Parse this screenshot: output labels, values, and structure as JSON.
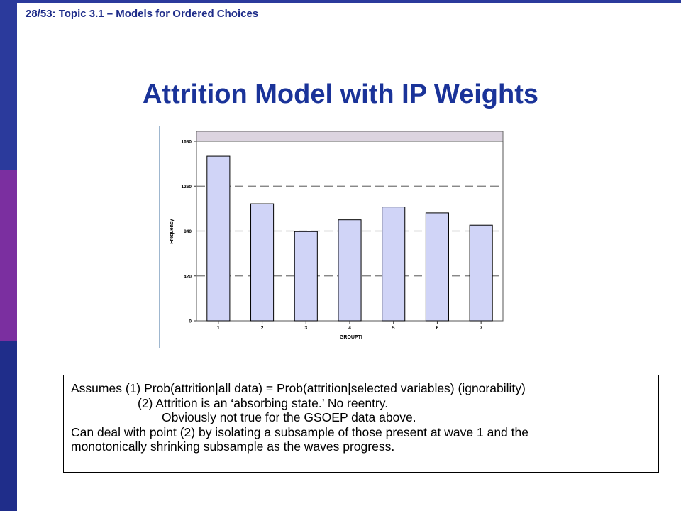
{
  "header": {
    "text": "28/53: Topic 3.1 – Models for Ordered Choices"
  },
  "slide": {
    "title": "Attrition Model with IP Weights"
  },
  "colors": {
    "bar_fill": "#d0d4f7",
    "bar_stroke": "#000000",
    "accent": "#1a3399"
  },
  "chart_data": {
    "type": "bar",
    "categories": [
      "1",
      "2",
      "3",
      "4",
      "5",
      "6",
      "7"
    ],
    "values": [
      1540,
      1095,
      835,
      945,
      1065,
      1010,
      895
    ],
    "xlabel": "_GROUPTI",
    "ylabel": "Frequency",
    "ylim": [
      0,
      1680
    ],
    "yticks": [
      "0",
      "420",
      "840",
      "1260",
      "1680"
    ],
    "grid": "dashed horizontal"
  },
  "textbox": {
    "line1": "Assumes (1) Prob(attrition|all data) = Prob(attrition|selected variables) (ignorability)",
    "line2": "(2) Attrition is an ‘absorbing state.’  No reentry.",
    "line3": "Obviously not true for the GSOEP data above.",
    "line4": "Can deal with point (2) by isolating a subsample of those present at wave 1 and the",
    "line5": "monotonically shrinking subsample as the waves progress."
  }
}
